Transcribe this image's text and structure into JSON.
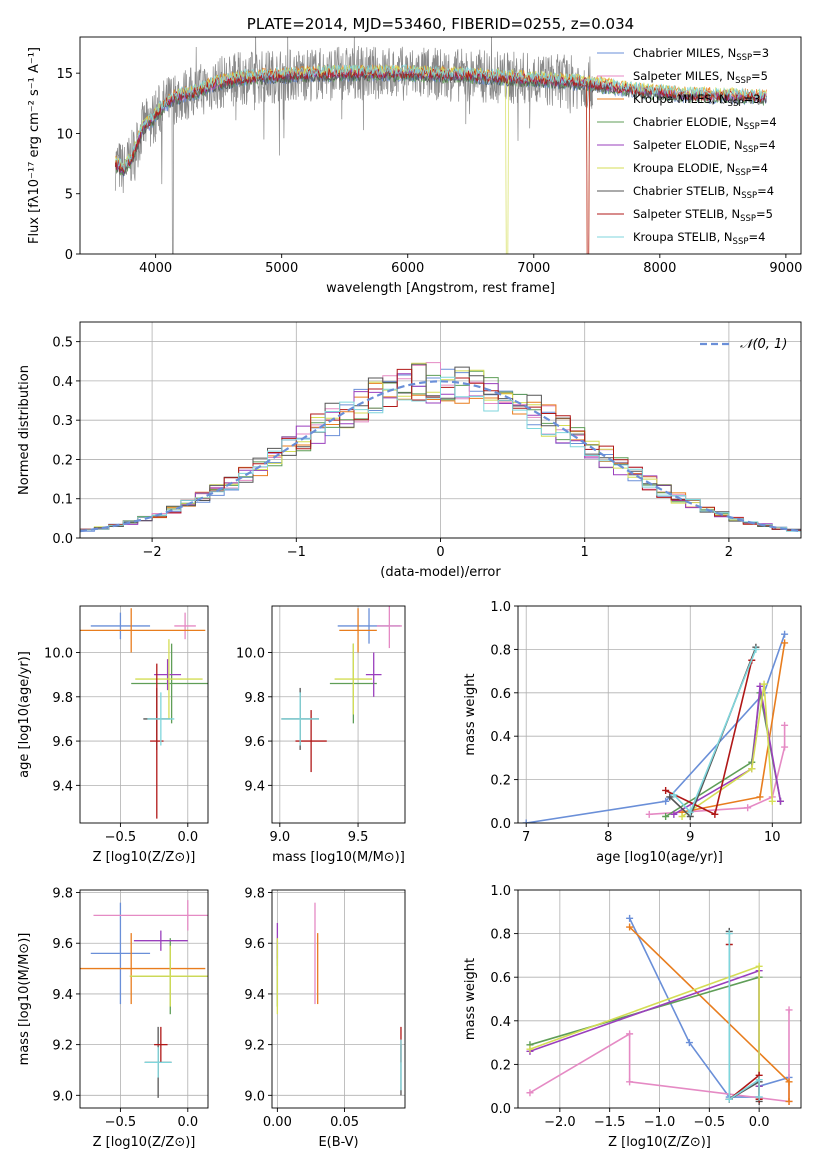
{
  "colors": {
    "chabrier_miles": "#6a8fd8",
    "salpeter_miles": "#e58ac4",
    "kroupa_miles": "#e87d1e",
    "chabrier_elodie": "#5f9e57",
    "salpeter_elodie": "#9a3fbd",
    "kroupa_elodie": "#d4dd55",
    "chabrier_stelib": "#555555",
    "salpeter_stelib": "#b01818",
    "kroupa_stelib": "#7fd6dc",
    "data_spectrum": "#888888",
    "grid": "#b0b0b0"
  },
  "chart_data": [
    {
      "id": "spectrum",
      "type": "line",
      "title": "PLATE=2014, MJD=53460, FIBERID=0255, z=0.034",
      "xlabel": "wavelength [Angstrom, rest frame]",
      "ylabel": "Flux [fλ10⁻¹⁷ erg cm⁻² s⁻¹ A⁻¹]",
      "xlim": [
        3400,
        9120
      ],
      "ylim": [
        0,
        18
      ],
      "xticks": [
        4000,
        5000,
        6000,
        7000,
        8000,
        9000
      ],
      "yticks": [
        0,
        5,
        10,
        15
      ],
      "grid": false,
      "legend_position": "upper-right",
      "legend": [
        {
          "label": "Chabrier MILES, N",
          "sub": "SSP",
          "suffix": "=3",
          "color": "chabrier_miles"
        },
        {
          "label": "Salpeter MILES, N",
          "sub": "SSP",
          "suffix": "=5",
          "color": "salpeter_miles"
        },
        {
          "label": "Kroupa MILES, N",
          "sub": "SSP",
          "suffix": "=3",
          "color": "kroupa_miles"
        },
        {
          "label": "Chabrier ELODIE, N",
          "sub": "SSP",
          "suffix": "=4",
          "color": "chabrier_elodie"
        },
        {
          "label": "Salpeter ELODIE, N",
          "sub": "SSP",
          "suffix": "=4",
          "color": "salpeter_elodie"
        },
        {
          "label": "Kroupa ELODIE, N",
          "sub": "SSP",
          "suffix": "=4",
          "color": "kroupa_elodie"
        },
        {
          "label": "Chabrier STELIB, N",
          "sub": "SSP",
          "suffix": "=4",
          "color": "chabrier_stelib"
        },
        {
          "label": "Salpeter STELIB, N",
          "sub": "SSP",
          "suffix": "=5",
          "color": "salpeter_stelib"
        },
        {
          "label": "Kroupa STELIB, N",
          "sub": "SSP",
          "suffix": "=4",
          "color": "kroupa_stelib"
        }
      ],
      "model_continuum": [
        [
          3680,
          7.5
        ],
        [
          3750,
          7.0
        ],
        [
          3820,
          8.2
        ],
        [
          3900,
          10.5
        ],
        [
          3960,
          11.0
        ],
        [
          4050,
          12.2
        ],
        [
          4150,
          13.0
        ],
        [
          4300,
          13.4
        ],
        [
          4500,
          14.2
        ],
        [
          4700,
          14.6
        ],
        [
          5000,
          14.8
        ],
        [
          5200,
          14.9
        ],
        [
          5500,
          15.0
        ],
        [
          6000,
          15.0
        ],
        [
          6500,
          14.8
        ],
        [
          7000,
          14.5
        ],
        [
          7400,
          14.2
        ],
        [
          7800,
          13.6
        ],
        [
          8200,
          13.2
        ],
        [
          8600,
          13.1
        ],
        [
          8850,
          13.0
        ]
      ]
    },
    {
      "id": "residuals",
      "type": "histogram",
      "xlabel": "(data-model)/error",
      "ylabel": "Normed distribution",
      "xlim": [
        -2.5,
        2.5
      ],
      "ylim": [
        0,
        0.55
      ],
      "xticks": [
        -2,
        -1,
        0,
        1,
        2
      ],
      "yticks": [
        0.0,
        0.1,
        0.2,
        0.3,
        0.4,
        0.5
      ],
      "grid": true,
      "legend_position": "upper-right",
      "legend": [
        {
          "label": "𝒩(0, 1)",
          "style": "dashed",
          "color": "chabrier_miles"
        }
      ],
      "bin_width": 0.1,
      "reference_curve": "normal(0,1)"
    },
    {
      "id": "age_vs_Z",
      "type": "errorbar",
      "xlabel": "Z [log10(Z/Z⊙)]",
      "ylabel": "age  [log10(age/yr)]",
      "xlim": [
        -0.8,
        0.15
      ],
      "ylim": [
        9.23,
        10.21
      ],
      "xticks": [
        -0.5,
        0.0
      ],
      "yticks": [
        9.4,
        9.6,
        9.8,
        10.0
      ],
      "grid": true,
      "points": [
        {
          "x": -0.5,
          "xerr": 0.22,
          "y": 10.12,
          "yerr": 0.06,
          "color": "chabrier_miles"
        },
        {
          "x": -0.02,
          "xerr": 0.08,
          "y": 10.12,
          "yerr": 0.06,
          "color": "salpeter_miles"
        },
        {
          "x": -0.42,
          "xerr": 0.55,
          "y": 10.1,
          "yerr": 0.1,
          "color": "kroupa_miles"
        },
        {
          "x": -0.12,
          "xerr": 0.3,
          "y": 9.86,
          "yerr": 0.18,
          "color": "chabrier_elodie"
        },
        {
          "x": -0.15,
          "xerr": 0.1,
          "y": 9.9,
          "yerr": 0.07,
          "color": "salpeter_elodie"
        },
        {
          "x": -0.14,
          "xerr": 0.25,
          "y": 9.88,
          "yerr": 0.18,
          "color": "kroupa_elodie"
        },
        {
          "x": -0.23,
          "xerr": 0.1,
          "y": 9.7,
          "yerr": 0.14,
          "color": "chabrier_stelib"
        },
        {
          "x": -0.23,
          "xerr": 0.05,
          "y": 9.6,
          "yerr": 0.35,
          "color": "salpeter_stelib"
        },
        {
          "x": -0.2,
          "xerr": 0.1,
          "y": 9.7,
          "yerr": 0.12,
          "color": "kroupa_stelib"
        }
      ]
    },
    {
      "id": "age_vs_mass",
      "type": "errorbar",
      "xlabel": "mass [log10(M/M⊙)]",
      "ylabel": "",
      "xlim": [
        8.95,
        9.8
      ],
      "ylim": [
        9.23,
        10.21
      ],
      "xticks": [
        9.0,
        9.5
      ],
      "yticks": [
        9.4,
        9.6,
        9.8,
        10.0
      ],
      "grid": true,
      "points": [
        {
          "x": 9.57,
          "xerr": 0.2,
          "y": 10.12,
          "yerr": 0.08,
          "color": "chabrier_miles"
        },
        {
          "x": 9.7,
          "xerr": 0.08,
          "y": 10.12,
          "yerr": 0.1,
          "color": "salpeter_miles"
        },
        {
          "x": 9.5,
          "xerr": 0.12,
          "y": 10.1,
          "yerr": 0.1,
          "color": "kroupa_miles"
        },
        {
          "x": 9.47,
          "xerr": 0.15,
          "y": 9.86,
          "yerr": 0.18,
          "color": "chabrier_elodie"
        },
        {
          "x": 9.6,
          "xerr": 0.05,
          "y": 9.9,
          "yerr": 0.1,
          "color": "salpeter_elodie"
        },
        {
          "x": 9.47,
          "xerr": 0.12,
          "y": 9.88,
          "yerr": 0.16,
          "color": "kroupa_elodie"
        },
        {
          "x": 9.13,
          "xerr": 0.12,
          "y": 9.7,
          "yerr": 0.14,
          "color": "chabrier_stelib"
        },
        {
          "x": 9.2,
          "xerr": 0.1,
          "y": 9.6,
          "yerr": 0.14,
          "color": "salpeter_stelib"
        },
        {
          "x": 9.13,
          "xerr": 0.12,
          "y": 9.7,
          "yerr": 0.12,
          "color": "kroupa_stelib"
        }
      ]
    },
    {
      "id": "weight_vs_age",
      "type": "line",
      "xlabel": "age  [log10(age/yr)]",
      "ylabel": "mass weight",
      "xlim": [
        6.9,
        10.35
      ],
      "ylim": [
        0,
        1.0
      ],
      "xticks": [
        7,
        8,
        9,
        10
      ],
      "yticks": [
        0.0,
        0.2,
        0.4,
        0.6,
        0.8,
        1.0
      ],
      "grid": true,
      "series": [
        {
          "color": "chabrier_miles",
          "points": [
            [
              7.0,
              0.0
            ],
            [
              8.7,
              0.1
            ],
            [
              9.9,
              0.6
            ],
            [
              10.15,
              0.87
            ]
          ]
        },
        {
          "color": "salpeter_miles",
          "points": [
            [
              8.5,
              0.04
            ],
            [
              9.7,
              0.07
            ],
            [
              10.0,
              0.12
            ],
            [
              10.15,
              0.35
            ],
            [
              10.15,
              0.45
            ]
          ]
        },
        {
          "color": "kroupa_miles",
          "points": [
            [
              8.9,
              0.05
            ],
            [
              9.85,
              0.12
            ],
            [
              10.15,
              0.83
            ]
          ]
        },
        {
          "color": "chabrier_elodie",
          "points": [
            [
              8.7,
              0.03
            ],
            [
              9.75,
              0.28
            ],
            [
              9.85,
              0.6
            ],
            [
              10.1,
              0.1
            ]
          ]
        },
        {
          "color": "salpeter_elodie",
          "points": [
            [
              8.8,
              0.04
            ],
            [
              9.75,
              0.25
            ],
            [
              9.85,
              0.63
            ],
            [
              10.1,
              0.1
            ]
          ]
        },
        {
          "color": "kroupa_elodie",
          "points": [
            [
              8.9,
              0.03
            ],
            [
              9.75,
              0.25
            ],
            [
              9.9,
              0.64
            ],
            [
              10.0,
              0.1
            ]
          ]
        },
        {
          "color": "chabrier_stelib",
          "points": [
            [
              8.75,
              0.12
            ],
            [
              9.0,
              0.03
            ],
            [
              9.8,
              0.81
            ]
          ]
        },
        {
          "color": "salpeter_stelib",
          "points": [
            [
              8.7,
              0.15
            ],
            [
              9.3,
              0.04
            ],
            [
              9.75,
              0.75
            ]
          ]
        },
        {
          "color": "kroupa_stelib",
          "points": [
            [
              8.8,
              0.13
            ],
            [
              9.0,
              0.05
            ],
            [
              9.8,
              0.8
            ]
          ]
        }
      ]
    },
    {
      "id": "mass_vs_Z",
      "type": "errorbar",
      "xlabel": "Z [log10(Z/Z⊙)]",
      "ylabel": "mass [log10(M/M⊙)]",
      "xlim": [
        -0.8,
        0.15
      ],
      "ylim": [
        8.95,
        9.81
      ],
      "xticks": [
        -0.5,
        0.0
      ],
      "yticks": [
        9.0,
        9.2,
        9.4,
        9.6,
        9.8
      ],
      "grid": true,
      "points": [
        {
          "x": -0.5,
          "xerr": 0.22,
          "y": 9.56,
          "yerr": 0.2,
          "color": "chabrier_miles"
        },
        {
          "x": 0.0,
          "xerr": 0.7,
          "y": 9.71,
          "yerr": 0.06,
          "color": "salpeter_miles"
        },
        {
          "x": -0.42,
          "xerr": 0.55,
          "y": 9.5,
          "yerr": 0.14,
          "color": "kroupa_miles"
        },
        {
          "x": -0.13,
          "xerr": 0.3,
          "y": 9.47,
          "yerr": 0.15,
          "color": "chabrier_elodie"
        },
        {
          "x": -0.2,
          "xerr": 0.2,
          "y": 9.61,
          "yerr": 0.04,
          "color": "salpeter_elodie"
        },
        {
          "x": -0.13,
          "xerr": 0.3,
          "y": 9.47,
          "yerr": 0.12,
          "color": "kroupa_elodie"
        },
        {
          "x": -0.22,
          "xerr": 0.1,
          "y": 9.13,
          "yerr": 0.14,
          "color": "chabrier_stelib"
        },
        {
          "x": -0.2,
          "xerr": 0.05,
          "y": 9.2,
          "yerr": 0.07,
          "color": "salpeter_stelib"
        },
        {
          "x": -0.22,
          "xerr": 0.1,
          "y": 9.13,
          "yerr": 0.06,
          "color": "kroupa_stelib"
        }
      ]
    },
    {
      "id": "mass_vs_ebv",
      "type": "errorbar",
      "xlabel": "E(B-V)",
      "ylabel": "",
      "xlim": [
        -0.004,
        0.095
      ],
      "ylim": [
        8.95,
        9.81
      ],
      "xticks": [
        0.0,
        0.05
      ],
      "yticks": [
        9.0,
        9.2,
        9.4,
        9.6,
        9.8
      ],
      "grid": true,
      "points": [
        {
          "x": 0.0,
          "xerr": 0.0,
          "y": 9.56,
          "yerr": 0.05,
          "color": "chabrier_miles"
        },
        {
          "x": 0.028,
          "xerr": 0.0,
          "y": 9.56,
          "yerr": 0.2,
          "color": "salpeter_miles"
        },
        {
          "x": 0.03,
          "xerr": 0.0,
          "y": 9.5,
          "yerr": 0.14,
          "color": "kroupa_miles"
        },
        {
          "x": 0.0,
          "xerr": 0.0,
          "y": 9.47,
          "yerr": 0.12,
          "color": "chabrier_elodie"
        },
        {
          "x": 0.0,
          "xerr": 0.0,
          "y": 9.61,
          "yerr": 0.07,
          "color": "salpeter_elodie"
        },
        {
          "x": 0.0,
          "xerr": 0.0,
          "y": 9.47,
          "yerr": 0.15,
          "color": "kroupa_elodie"
        },
        {
          "x": 0.092,
          "xerr": 0.0,
          "y": 9.1,
          "yerr": 0.1,
          "color": "chabrier_stelib"
        },
        {
          "x": 0.092,
          "xerr": 0.0,
          "y": 9.2,
          "yerr": 0.07,
          "color": "salpeter_stelib"
        },
        {
          "x": 0.092,
          "xerr": 0.0,
          "y": 9.12,
          "yerr": 0.1,
          "color": "kroupa_stelib"
        }
      ]
    },
    {
      "id": "weight_vs_Z",
      "type": "line",
      "xlabel": "Z [log10(Z/Z⊙)]",
      "ylabel": "mass weight",
      "xlim": [
        -2.42,
        0.42
      ],
      "ylim": [
        0,
        1.0
      ],
      "xticks": [
        -2.0,
        -1.5,
        -1.0,
        -0.5,
        0.0
      ],
      "yticks": [
        0.0,
        0.2,
        0.4,
        0.6,
        0.8,
        1.0
      ],
      "grid": true,
      "series": [
        {
          "color": "chabrier_miles",
          "points": [
            [
              -1.3,
              0.87
            ],
            [
              -0.7,
              0.3
            ],
            [
              -0.3,
              0.05
            ],
            [
              0.0,
              0.05
            ],
            [
              0.0,
              0.1
            ],
            [
              0.3,
              0.14
            ]
          ]
        },
        {
          "color": "salpeter_miles",
          "points": [
            [
              -2.3,
              0.07
            ],
            [
              -1.3,
              0.34
            ],
            [
              -1.3,
              0.12
            ],
            [
              0.3,
              0.03
            ],
            [
              0.3,
              0.45
            ]
          ]
        },
        {
          "color": "kroupa_miles",
          "points": [
            [
              -1.3,
              0.83
            ],
            [
              0.3,
              0.12
            ],
            [
              0.3,
              0.03
            ]
          ]
        },
        {
          "color": "chabrier_elodie",
          "points": [
            [
              -2.3,
              0.29
            ],
            [
              0.0,
              0.6
            ],
            [
              0.0,
              0.1
            ]
          ]
        },
        {
          "color": "salpeter_elodie",
          "points": [
            [
              -2.3,
              0.26
            ],
            [
              0.0,
              0.63
            ],
            [
              0.0,
              0.1
            ]
          ]
        },
        {
          "color": "kroupa_elodie",
          "points": [
            [
              -2.3,
              0.27
            ],
            [
              0.0,
              0.65
            ],
            [
              0.0,
              0.04
            ]
          ]
        },
        {
          "color": "chabrier_stelib",
          "points": [
            [
              -0.3,
              0.81
            ],
            [
              -0.3,
              0.04
            ],
            [
              0.0,
              0.12
            ],
            [
              0.0,
              0.03
            ]
          ]
        },
        {
          "color": "salpeter_stelib",
          "points": [
            [
              -0.3,
              0.75
            ],
            [
              -0.3,
              0.04
            ],
            [
              0.0,
              0.15
            ],
            [
              0.0,
              0.04
            ]
          ]
        },
        {
          "color": "kroupa_stelib",
          "points": [
            [
              -0.3,
              0.8
            ],
            [
              -0.3,
              0.04
            ],
            [
              0.0,
              0.13
            ],
            [
              0.0,
              0.05
            ]
          ]
        }
      ]
    }
  ]
}
